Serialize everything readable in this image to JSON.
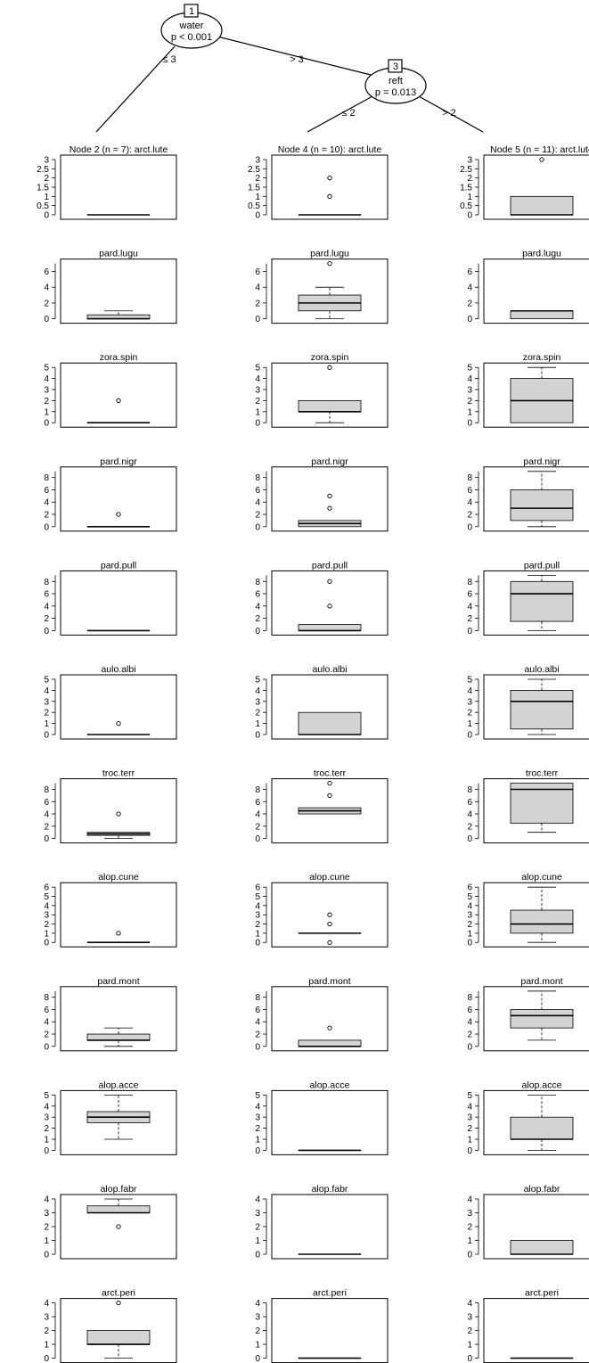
{
  "tree": {
    "nodes": [
      {
        "id": "1",
        "variable": "water",
        "pvalue": "p < 0.001"
      },
      {
        "id": "3",
        "variable": "reft",
        "pvalue": "p = 0.013"
      }
    ],
    "edges": [
      {
        "label": "≤ 3"
      },
      {
        "label": "> 3"
      },
      {
        "label": "≤ 2"
      },
      {
        "label": "> 2"
      }
    ]
  },
  "chart_data": {
    "type": "boxplot",
    "columns": [
      {
        "node": "Node 2 (n = 7)",
        "n": 7
      },
      {
        "node": "Node 4 (n = 10)",
        "n": 10
      },
      {
        "node": "Node 5 (n = 11)",
        "n": 11
      }
    ],
    "panels": [
      {
        "species": "arct.lute",
        "ylim": [
          0,
          3
        ],
        "ticks": [
          "0",
          "0.5",
          "1",
          "1.5",
          "2",
          "2.5",
          "3"
        ],
        "boxes": [
          {
            "min": 0,
            "q1": 0,
            "med": 0,
            "q3": 0,
            "max": 0,
            "outliers": []
          },
          {
            "min": 0,
            "q1": 0,
            "med": 0,
            "q3": 0,
            "max": 0,
            "outliers": [
              1,
              2
            ]
          },
          {
            "min": 0,
            "q1": 0,
            "med": 0,
            "q3": 1,
            "max": 1,
            "outliers": [
              3
            ]
          }
        ]
      },
      {
        "species": "pard.lugu",
        "ylim": [
          0,
          7
        ],
        "ticks": [
          "0",
          "2",
          "4",
          "6"
        ],
        "boxes": [
          {
            "min": 0,
            "q1": 0,
            "med": 0,
            "q3": 0.5,
            "max": 1,
            "outliers": []
          },
          {
            "min": 0,
            "q1": 1,
            "med": 2,
            "q3": 3,
            "max": 4,
            "outliers": [
              7
            ]
          },
          {
            "min": 0,
            "q1": 0,
            "med": 1,
            "q3": 1,
            "max": 1,
            "outliers": []
          }
        ]
      },
      {
        "species": "zora.spin",
        "ylim": [
          0,
          5
        ],
        "ticks": [
          "0",
          "1",
          "2",
          "3",
          "4",
          "5"
        ],
        "boxes": [
          {
            "min": 0,
            "q1": 0,
            "med": 0,
            "q3": 0,
            "max": 0,
            "outliers": [
              2
            ]
          },
          {
            "min": 0,
            "q1": 1,
            "med": 1,
            "q3": 2,
            "max": 2,
            "outliers": [
              5
            ]
          },
          {
            "min": 0,
            "q1": 0,
            "med": 2,
            "q3": 4,
            "max": 5,
            "outliers": []
          }
        ]
      },
      {
        "species": "pard.nigr",
        "ylim": [
          0,
          9
        ],
        "ticks": [
          "0",
          "2",
          "4",
          "6",
          "8"
        ],
        "boxes": [
          {
            "min": 0,
            "q1": 0,
            "med": 0,
            "q3": 0,
            "max": 0,
            "outliers": [
              2
            ]
          },
          {
            "min": 0,
            "q1": 0,
            "med": 0.5,
            "q3": 1,
            "max": 1,
            "outliers": [
              3,
              5
            ]
          },
          {
            "min": 0,
            "q1": 1,
            "med": 3,
            "q3": 6,
            "max": 9,
            "outliers": []
          }
        ]
      },
      {
        "species": "pard.pull",
        "ylim": [
          0,
          9
        ],
        "ticks": [
          "0",
          "2",
          "4",
          "6",
          "8"
        ],
        "boxes": [
          {
            "min": 0,
            "q1": 0,
            "med": 0,
            "q3": 0,
            "max": 0,
            "outliers": []
          },
          {
            "min": 0,
            "q1": 0,
            "med": 0,
            "q3": 1,
            "max": 1,
            "outliers": [
              4,
              8
            ]
          },
          {
            "min": 0,
            "q1": 1.5,
            "med": 6,
            "q3": 8,
            "max": 9,
            "outliers": []
          }
        ]
      },
      {
        "species": "aulo.albi",
        "ylim": [
          0,
          5
        ],
        "ticks": [
          "0",
          "1",
          "2",
          "3",
          "4",
          "5"
        ],
        "boxes": [
          {
            "min": 0,
            "q1": 0,
            "med": 0,
            "q3": 0,
            "max": 0,
            "outliers": [
              1
            ]
          },
          {
            "min": 0,
            "q1": 0,
            "med": 0,
            "q3": 2,
            "max": 2,
            "outliers": []
          },
          {
            "min": 0,
            "q1": 0.5,
            "med": 3,
            "q3": 4,
            "max": 5,
            "outliers": []
          }
        ]
      },
      {
        "species": "troc.terr",
        "ylim": [
          0,
          9
        ],
        "ticks": [
          "0",
          "2",
          "4",
          "6",
          "8"
        ],
        "boxes": [
          {
            "min": 0,
            "q1": 0.5,
            "med": 0.75,
            "q3": 1,
            "max": 1,
            "outliers": [
              4
            ]
          },
          {
            "min": 4,
            "q1": 4,
            "med": 4.5,
            "q3": 5,
            "max": 5,
            "outliers": [
              7,
              9
            ]
          },
          {
            "min": 1,
            "q1": 2.5,
            "med": 8,
            "q3": 9,
            "max": 9,
            "outliers": []
          }
        ]
      },
      {
        "species": "alop.cune",
        "ylim": [
          0,
          6
        ],
        "ticks": [
          "0",
          "1",
          "2",
          "3",
          "4",
          "5",
          "6"
        ],
        "boxes": [
          {
            "min": 0,
            "q1": 0,
            "med": 0,
            "q3": 0,
            "max": 0,
            "outliers": [
              1
            ]
          },
          {
            "min": 1,
            "q1": 1,
            "med": 1,
            "q3": 1,
            "max": 1,
            "outliers": [
              0,
              2,
              3
            ]
          },
          {
            "min": 0,
            "q1": 1,
            "med": 2,
            "q3": 3.5,
            "max": 6,
            "outliers": []
          }
        ]
      },
      {
        "species": "pard.mont",
        "ylim": [
          0,
          9
        ],
        "ticks": [
          "0",
          "2",
          "4",
          "6",
          "8"
        ],
        "boxes": [
          {
            "min": 0,
            "q1": 1,
            "med": 1,
            "q3": 2,
            "max": 3,
            "outliers": []
          },
          {
            "min": 0,
            "q1": 0,
            "med": 0,
            "q3": 1,
            "max": 1,
            "outliers": [
              3
            ]
          },
          {
            "min": 1,
            "q1": 3,
            "med": 5,
            "q3": 6,
            "max": 9,
            "outliers": []
          }
        ]
      },
      {
        "species": "alop.acce",
        "ylim": [
          0,
          5
        ],
        "ticks": [
          "0",
          "1",
          "2",
          "3",
          "4",
          "5"
        ],
        "boxes": [
          {
            "min": 1,
            "q1": 2.5,
            "med": 3,
            "q3": 3.5,
            "max": 5,
            "outliers": []
          },
          {
            "min": 0,
            "q1": 0,
            "med": 0,
            "q3": 0,
            "max": 0,
            "outliers": []
          },
          {
            "min": 0,
            "q1": 1,
            "med": 1,
            "q3": 3,
            "max": 5,
            "outliers": []
          }
        ]
      },
      {
        "species": "alop.fabr",
        "ylim": [
          0,
          4
        ],
        "ticks": [
          "0",
          "1",
          "2",
          "3",
          "4"
        ],
        "boxes": [
          {
            "min": 3,
            "q1": 3,
            "med": 3,
            "q3": 3.5,
            "max": 4,
            "outliers": [
              2
            ]
          },
          {
            "min": 0,
            "q1": 0,
            "med": 0,
            "q3": 0,
            "max": 0,
            "outliers": []
          },
          {
            "min": 0,
            "q1": 0,
            "med": 0,
            "q3": 1,
            "max": 1,
            "outliers": []
          }
        ]
      },
      {
        "species": "arct.peri",
        "ylim": [
          0,
          4
        ],
        "ticks": [
          "0",
          "1",
          "2",
          "3",
          "4"
        ],
        "boxes": [
          {
            "min": 0,
            "q1": 1,
            "med": 1,
            "q3": 2,
            "max": 2,
            "outliers": [
              4
            ]
          },
          {
            "min": 0,
            "q1": 0,
            "med": 0,
            "q3": 0,
            "max": 0,
            "outliers": []
          },
          {
            "min": 0,
            "q1": 0,
            "med": 0,
            "q3": 0,
            "max": 0,
            "outliers": []
          }
        ]
      }
    ],
    "colors": {
      "box_fill": "#d3d3d3",
      "line": "#000000"
    }
  }
}
